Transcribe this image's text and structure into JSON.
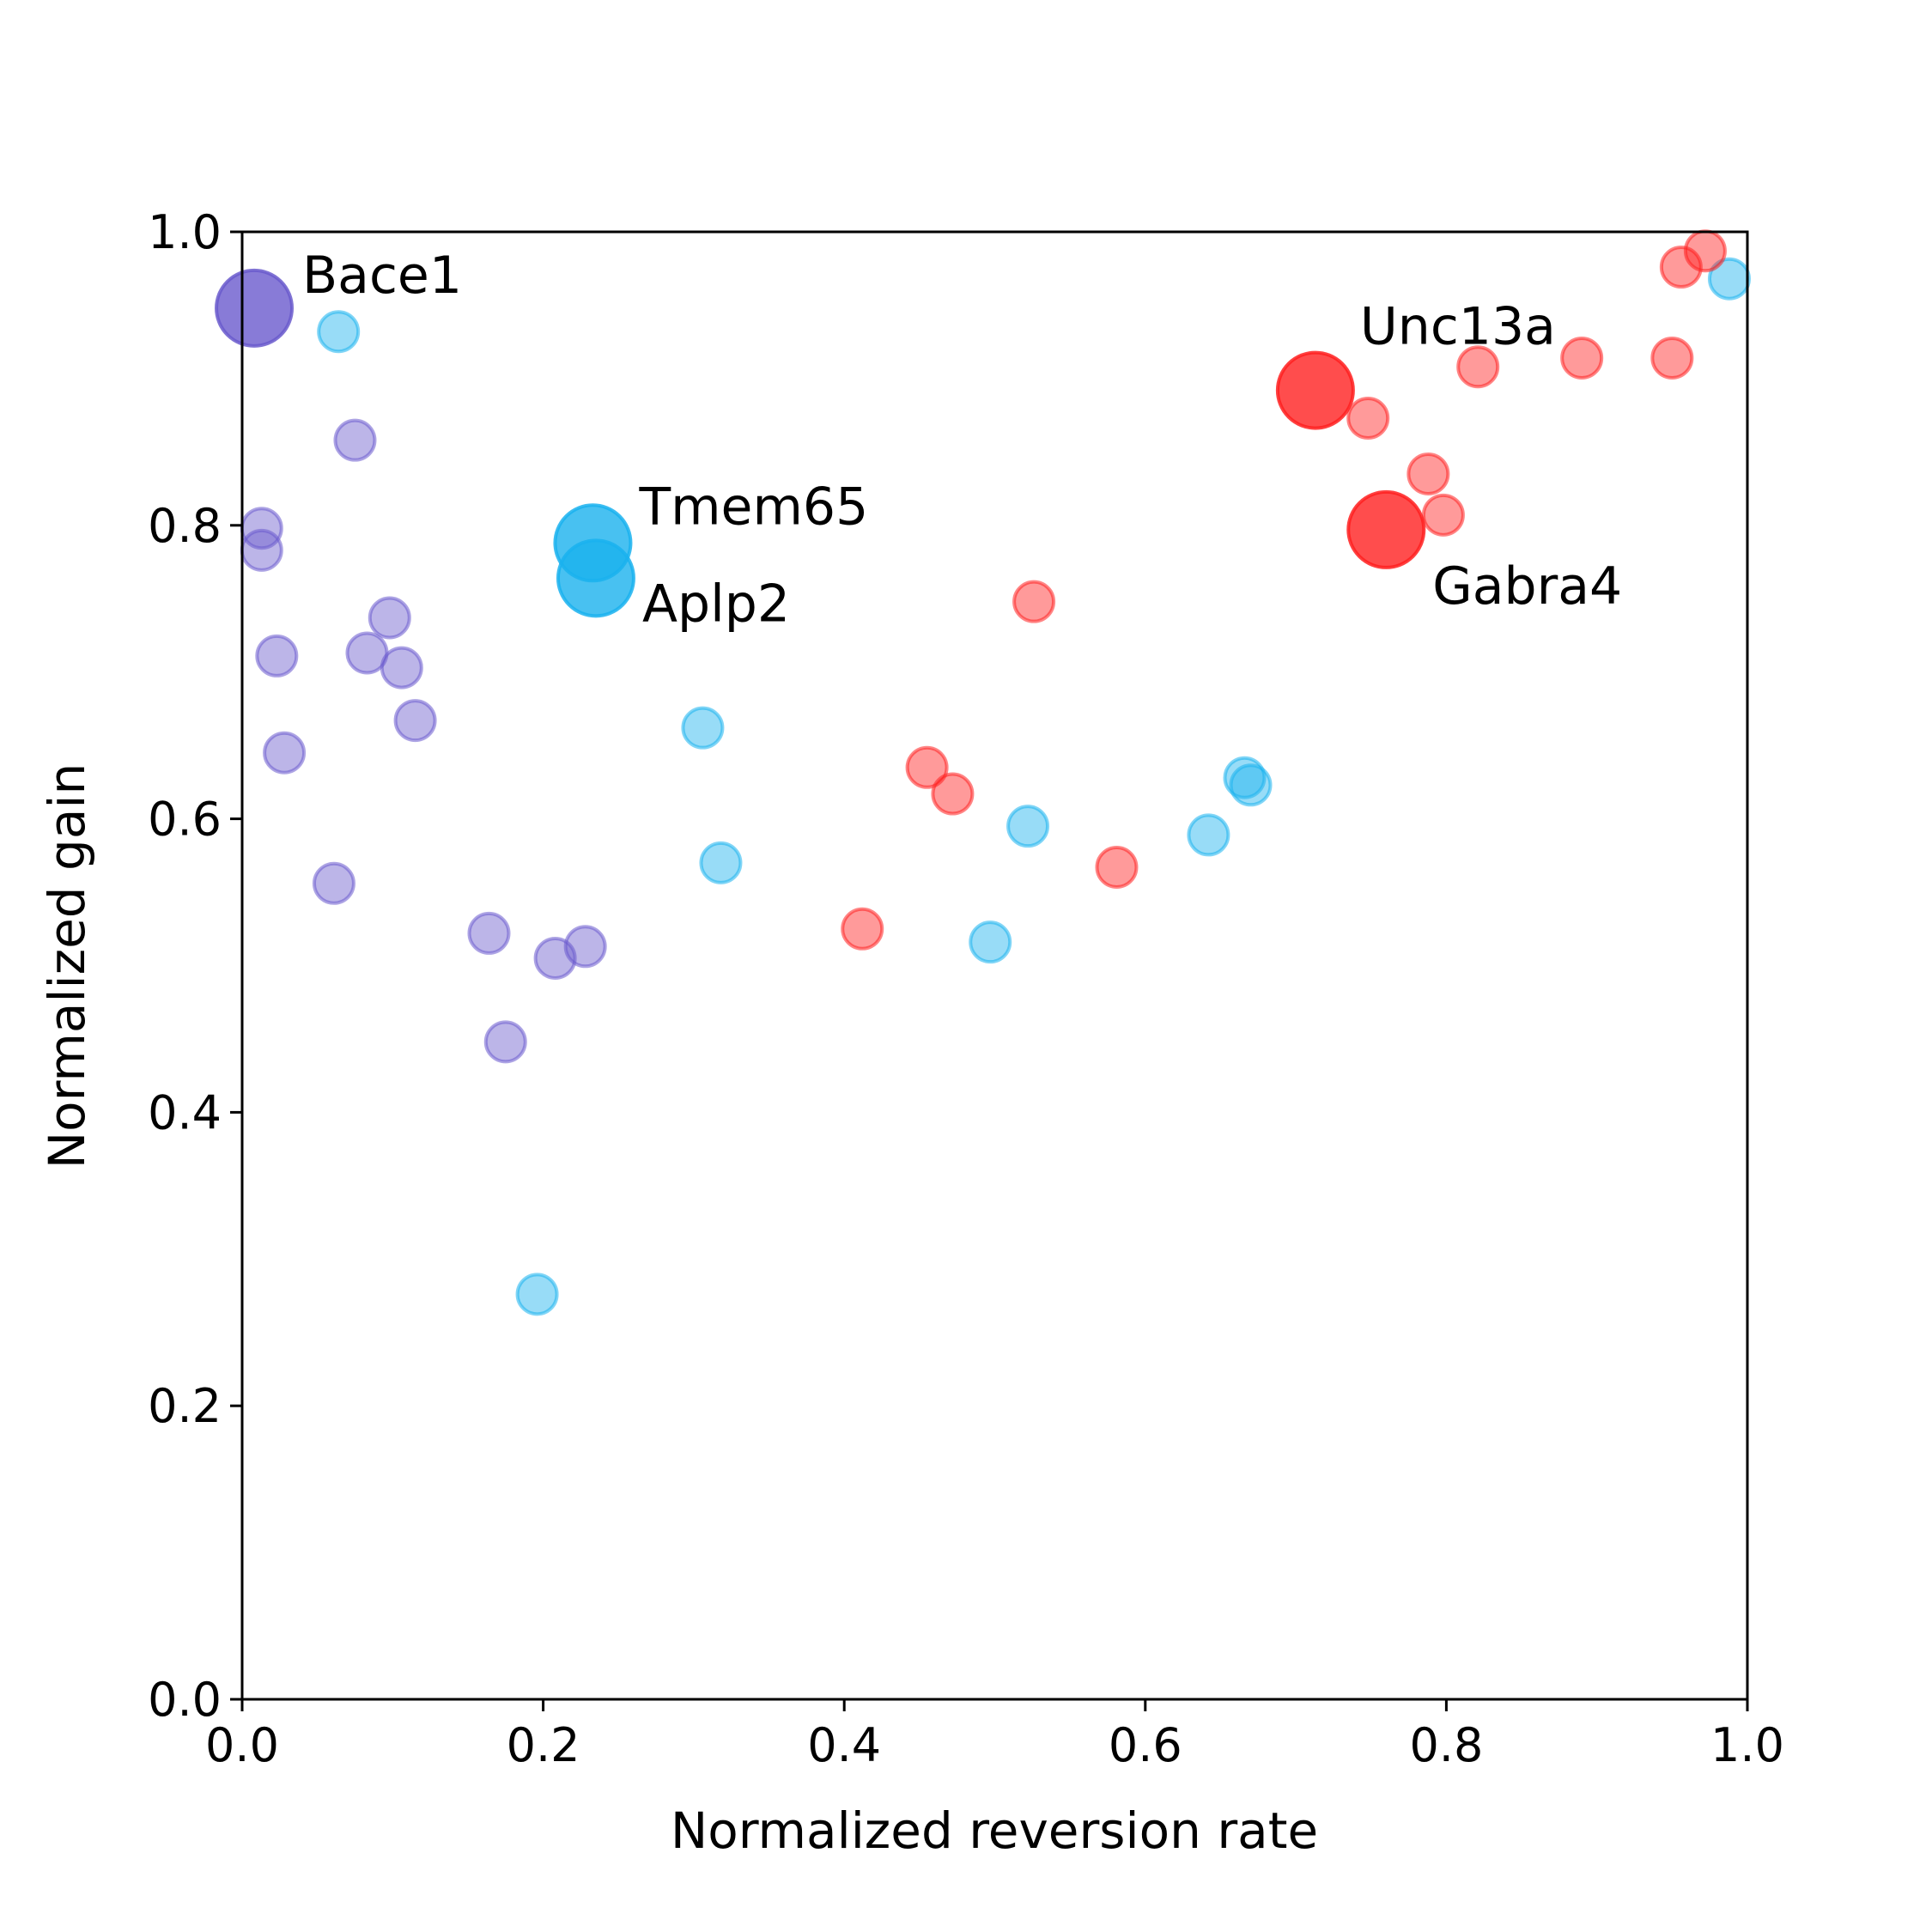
{
  "chart_data": {
    "type": "scatter",
    "title": "",
    "xlabel": "Normalized reversion rate",
    "ylabel": "Normalized gain",
    "xlim": [
      0.0,
      1.0
    ],
    "ylim": [
      0.0,
      1.0
    ],
    "xticks": [
      "0.0",
      "0.2",
      "0.4",
      "0.6",
      "0.8",
      "1.0"
    ],
    "yticks": [
      "0.0",
      "0.2",
      "0.4",
      "0.6",
      "0.8",
      "1.0"
    ],
    "grid": false,
    "legend": "none",
    "series": [
      {
        "color": "#6a5acd",
        "points": [
          {
            "x": 0.013,
            "y": 0.798
          },
          {
            "x": 0.013,
            "y": 0.783
          },
          {
            "x": 0.075,
            "y": 0.858
          },
          {
            "x": 0.023,
            "y": 0.711
          },
          {
            "x": 0.028,
            "y": 0.645
          },
          {
            "x": 0.083,
            "y": 0.713
          },
          {
            "x": 0.098,
            "y": 0.737
          },
          {
            "x": 0.106,
            "y": 0.703
          },
          {
            "x": 0.115,
            "y": 0.667
          },
          {
            "x": 0.061,
            "y": 0.556
          },
          {
            "x": 0.164,
            "y": 0.522
          },
          {
            "x": 0.208,
            "y": 0.505
          },
          {
            "x": 0.228,
            "y": 0.513
          },
          {
            "x": 0.175,
            "y": 0.448
          }
        ],
        "highlighted": [
          {
            "label": "Bace1",
            "x": 0.008,
            "y": 0.948
          }
        ]
      },
      {
        "color": "#1ab2ee",
        "points": [
          {
            "x": 0.064,
            "y": 0.932
          },
          {
            "x": 0.306,
            "y": 0.662
          },
          {
            "x": 0.318,
            "y": 0.57
          },
          {
            "x": 0.196,
            "y": 0.276
          },
          {
            "x": 0.497,
            "y": 0.516
          },
          {
            "x": 0.522,
            "y": 0.595
          },
          {
            "x": 0.642,
            "y": 0.589
          },
          {
            "x": 0.666,
            "y": 0.628
          },
          {
            "x": 0.67,
            "y": 0.623
          },
          {
            "x": 0.988,
            "y": 0.968
          }
        ],
        "highlighted": [
          {
            "label": "Tmem65",
            "x": 0.233,
            "y": 0.788
          },
          {
            "label": "Aplp2",
            "x": 0.235,
            "y": 0.764
          }
        ]
      },
      {
        "color": "#ff2020",
        "points": [
          {
            "x": 0.526,
            "y": 0.748
          },
          {
            "x": 0.455,
            "y": 0.635
          },
          {
            "x": 0.472,
            "y": 0.617
          },
          {
            "x": 0.412,
            "y": 0.525
          },
          {
            "x": 0.581,
            "y": 0.567
          },
          {
            "x": 0.748,
            "y": 0.873
          },
          {
            "x": 0.788,
            "y": 0.835
          },
          {
            "x": 0.798,
            "y": 0.807
          },
          {
            "x": 0.821,
            "y": 0.908
          },
          {
            "x": 0.89,
            "y": 0.914
          },
          {
            "x": 0.95,
            "y": 0.914
          },
          {
            "x": 0.956,
            "y": 0.976
          },
          {
            "x": 0.972,
            "y": 0.987
          }
        ],
        "highlighted": [
          {
            "label": "Unc13a",
            "x": 0.713,
            "y": 0.892
          },
          {
            "label": "Gabra4",
            "x": 0.76,
            "y": 0.797
          }
        ]
      }
    ]
  }
}
